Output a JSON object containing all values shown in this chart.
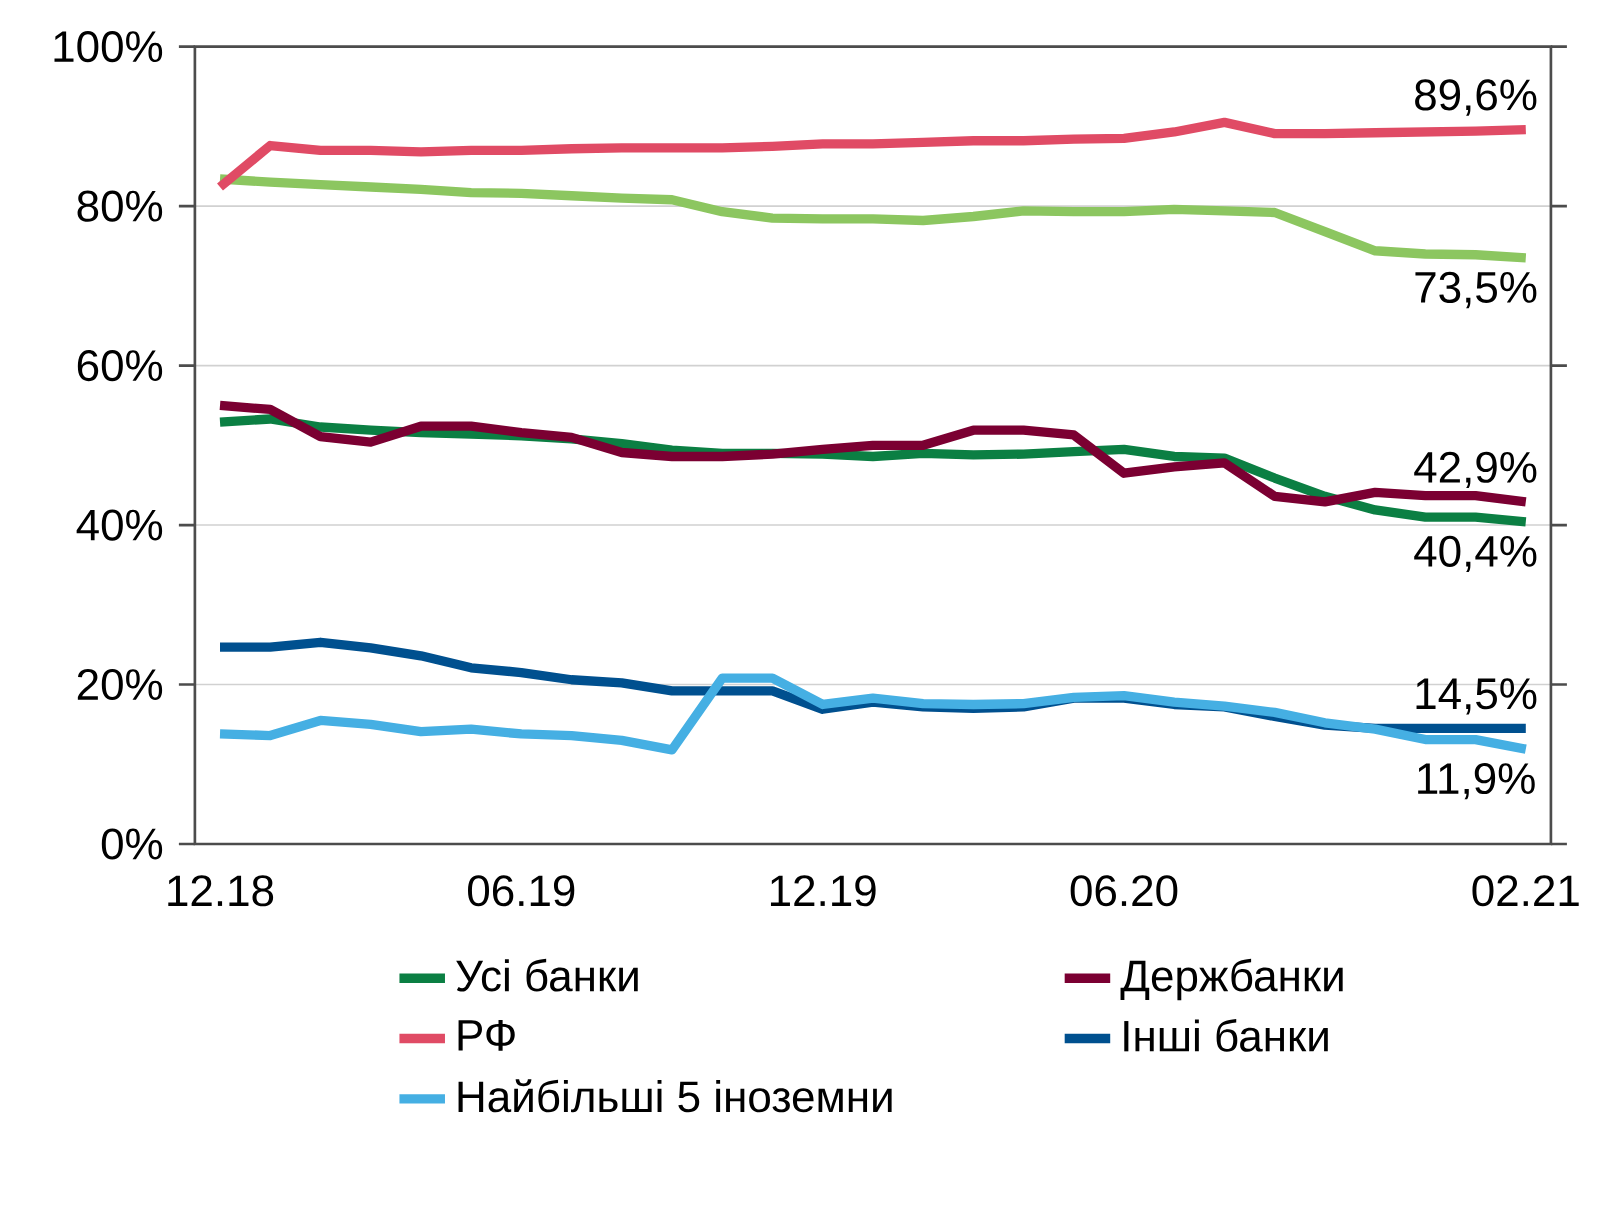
{
  "chart_data": {
    "type": "line",
    "categories": [
      "12.18",
      null,
      null,
      null,
      null,
      null,
      "06.19",
      null,
      null,
      null,
      null,
      null,
      "12.19",
      null,
      null,
      null,
      null,
      null,
      "06.20",
      null,
      null,
      null,
      null,
      null,
      null,
      null,
      "02.21"
    ],
    "series": [
      {
        "name": "Усі банки",
        "color": "#0b7f43",
        "values": [
          52.9,
          53.3,
          52.3,
          51.9,
          51.6,
          51.4,
          51.2,
          50.8,
          50.2,
          49.4,
          49.0,
          49.0,
          48.9,
          48.6,
          49.0,
          48.8,
          48.9,
          49.2,
          49.5,
          48.6,
          48.4,
          45.9,
          43.6,
          41.9,
          41.0,
          41.0,
          40.4
        ],
        "value_labels": [
          null,
          null,
          null,
          null,
          null,
          null,
          null,
          null,
          null,
          null,
          null,
          null,
          null,
          null,
          null,
          null,
          null,
          null,
          null,
          null,
          null,
          null,
          null,
          null,
          null,
          null,
          "40,4%"
        ]
      },
      {
        "color": "#8cc660",
        "values": [
          83.4,
          83.0,
          82.7,
          82.4,
          82.1,
          81.7,
          81.6,
          81.3,
          81.0,
          80.8,
          79.3,
          78.5,
          78.4,
          78.4,
          78.2,
          78.7,
          79.4,
          79.3,
          79.3,
          79.6,
          79.4,
          79.2,
          76.8,
          74.4,
          74.0,
          73.9,
          73.5
        ],
        "value_labels": [
          null,
          null,
          null,
          null,
          null,
          null,
          null,
          null,
          null,
          null,
          null,
          null,
          null,
          null,
          null,
          null,
          null,
          null,
          null,
          null,
          null,
          null,
          null,
          null,
          null,
          null,
          "73,5%"
        ]
      },
      {
        "name": "Держбанки",
        "color": "#7b0032",
        "values": [
          55.0,
          54.5,
          51.1,
          50.4,
          52.4,
          52.4,
          51.6,
          51.0,
          49.1,
          48.6,
          48.6,
          48.9,
          49.5,
          50.0,
          50.0,
          51.9,
          51.9,
          51.3,
          46.5,
          47.3,
          47.8,
          43.6,
          42.9,
          44.1,
          43.7,
          43.7,
          42.9
        ],
        "value_labels": [
          null,
          null,
          null,
          null,
          null,
          null,
          null,
          null,
          null,
          null,
          null,
          null,
          null,
          null,
          null,
          null,
          null,
          null,
          null,
          null,
          null,
          null,
          null,
          null,
          null,
          null,
          "42,9%"
        ]
      },
      {
        "name": "РФ",
        "color": "#e04b65",
        "values": [
          82.4,
          87.6,
          87.0,
          87.0,
          86.8,
          87.0,
          87.0,
          87.2,
          87.3,
          87.3,
          87.3,
          87.5,
          87.8,
          87.8,
          88.0,
          88.2,
          88.2,
          88.4,
          88.5,
          89.3,
          90.5,
          89.1,
          89.1,
          89.2,
          89.3,
          89.4,
          89.6
        ],
        "value_labels": [
          null,
          null,
          null,
          null,
          null,
          null,
          null,
          null,
          null,
          null,
          null,
          null,
          null,
          null,
          null,
          null,
          null,
          null,
          null,
          null,
          null,
          null,
          null,
          null,
          null,
          null,
          "89,6%"
        ]
      },
      {
        "name": "Інші банки",
        "color": "#00508f",
        "values": [
          24.7,
          24.7,
          25.3,
          24.6,
          23.6,
          22.1,
          21.5,
          20.6,
          20.2,
          19.2,
          19.2,
          19.2,
          16.9,
          17.8,
          17.2,
          17.0,
          17.2,
          18.3,
          18.3,
          17.5,
          17.2,
          16.0,
          14.9,
          14.5,
          14.5,
          14.5,
          14.5
        ],
        "value_labels": [
          null,
          null,
          null,
          null,
          null,
          null,
          null,
          null,
          null,
          null,
          null,
          null,
          null,
          null,
          null,
          null,
          null,
          null,
          null,
          null,
          null,
          null,
          null,
          null,
          null,
          null,
          "14,5%"
        ]
      },
      {
        "name": "Найбільші 5 іноземни",
        "color": "#45afe3",
        "values": [
          13.8,
          13.6,
          15.5,
          15.0,
          14.1,
          14.4,
          13.8,
          13.6,
          13.0,
          11.8,
          20.8,
          20.8,
          17.5,
          18.3,
          17.6,
          17.5,
          17.6,
          18.4,
          18.6,
          17.8,
          17.3,
          16.5,
          15.2,
          14.4,
          13.1,
          13.1,
          11.9
        ],
        "value_labels": [
          null,
          null,
          null,
          null,
          null,
          null,
          null,
          null,
          null,
          null,
          null,
          null,
          null,
          null,
          null,
          null,
          null,
          null,
          null,
          null,
          null,
          null,
          null,
          null,
          null,
          null,
          "11,9%"
        ]
      }
    ],
    "ylim": [
      0,
      100
    ],
    "yticks": [
      {
        "value": 0,
        "label": "0%"
      },
      {
        "value": 20,
        "label": "20%"
      },
      {
        "value": 40,
        "label": "40%"
      },
      {
        "value": 60,
        "label": "60%"
      },
      {
        "value": 80,
        "label": "80%"
      },
      {
        "value": 100,
        "label": "100%"
      }
    ],
    "grid": "y",
    "legend": "bottom",
    "marker": "none",
    "line_style": "solid"
  }
}
